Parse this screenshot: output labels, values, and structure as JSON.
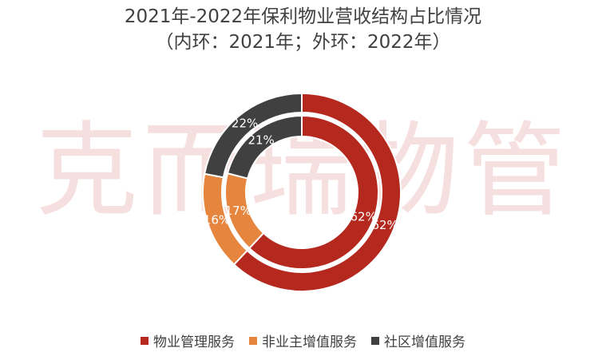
{
  "title": {
    "line1": "2021年-2022年保利物业营收结构占比情况",
    "line2": "（内环：2021年；外环：2022年）"
  },
  "watermark": "克而瑞物管",
  "chart_data": {
    "type": "pie",
    "variant": "nested-donut",
    "categories": [
      "物业管理服务",
      "非业主增值服务",
      "社区增值服务"
    ],
    "colors": [
      "#b5281e",
      "#e6853d",
      "#404040"
    ],
    "series": [
      {
        "ring": "inner",
        "values": [
          62,
          17,
          21
        ],
        "labels": [
          "62%",
          "17%",
          "21%"
        ]
      },
      {
        "ring": "outer",
        "values": [
          62,
          16,
          22
        ],
        "labels": [
          "62%",
          "16%",
          "22%"
        ]
      }
    ],
    "legend_position": "bottom"
  }
}
